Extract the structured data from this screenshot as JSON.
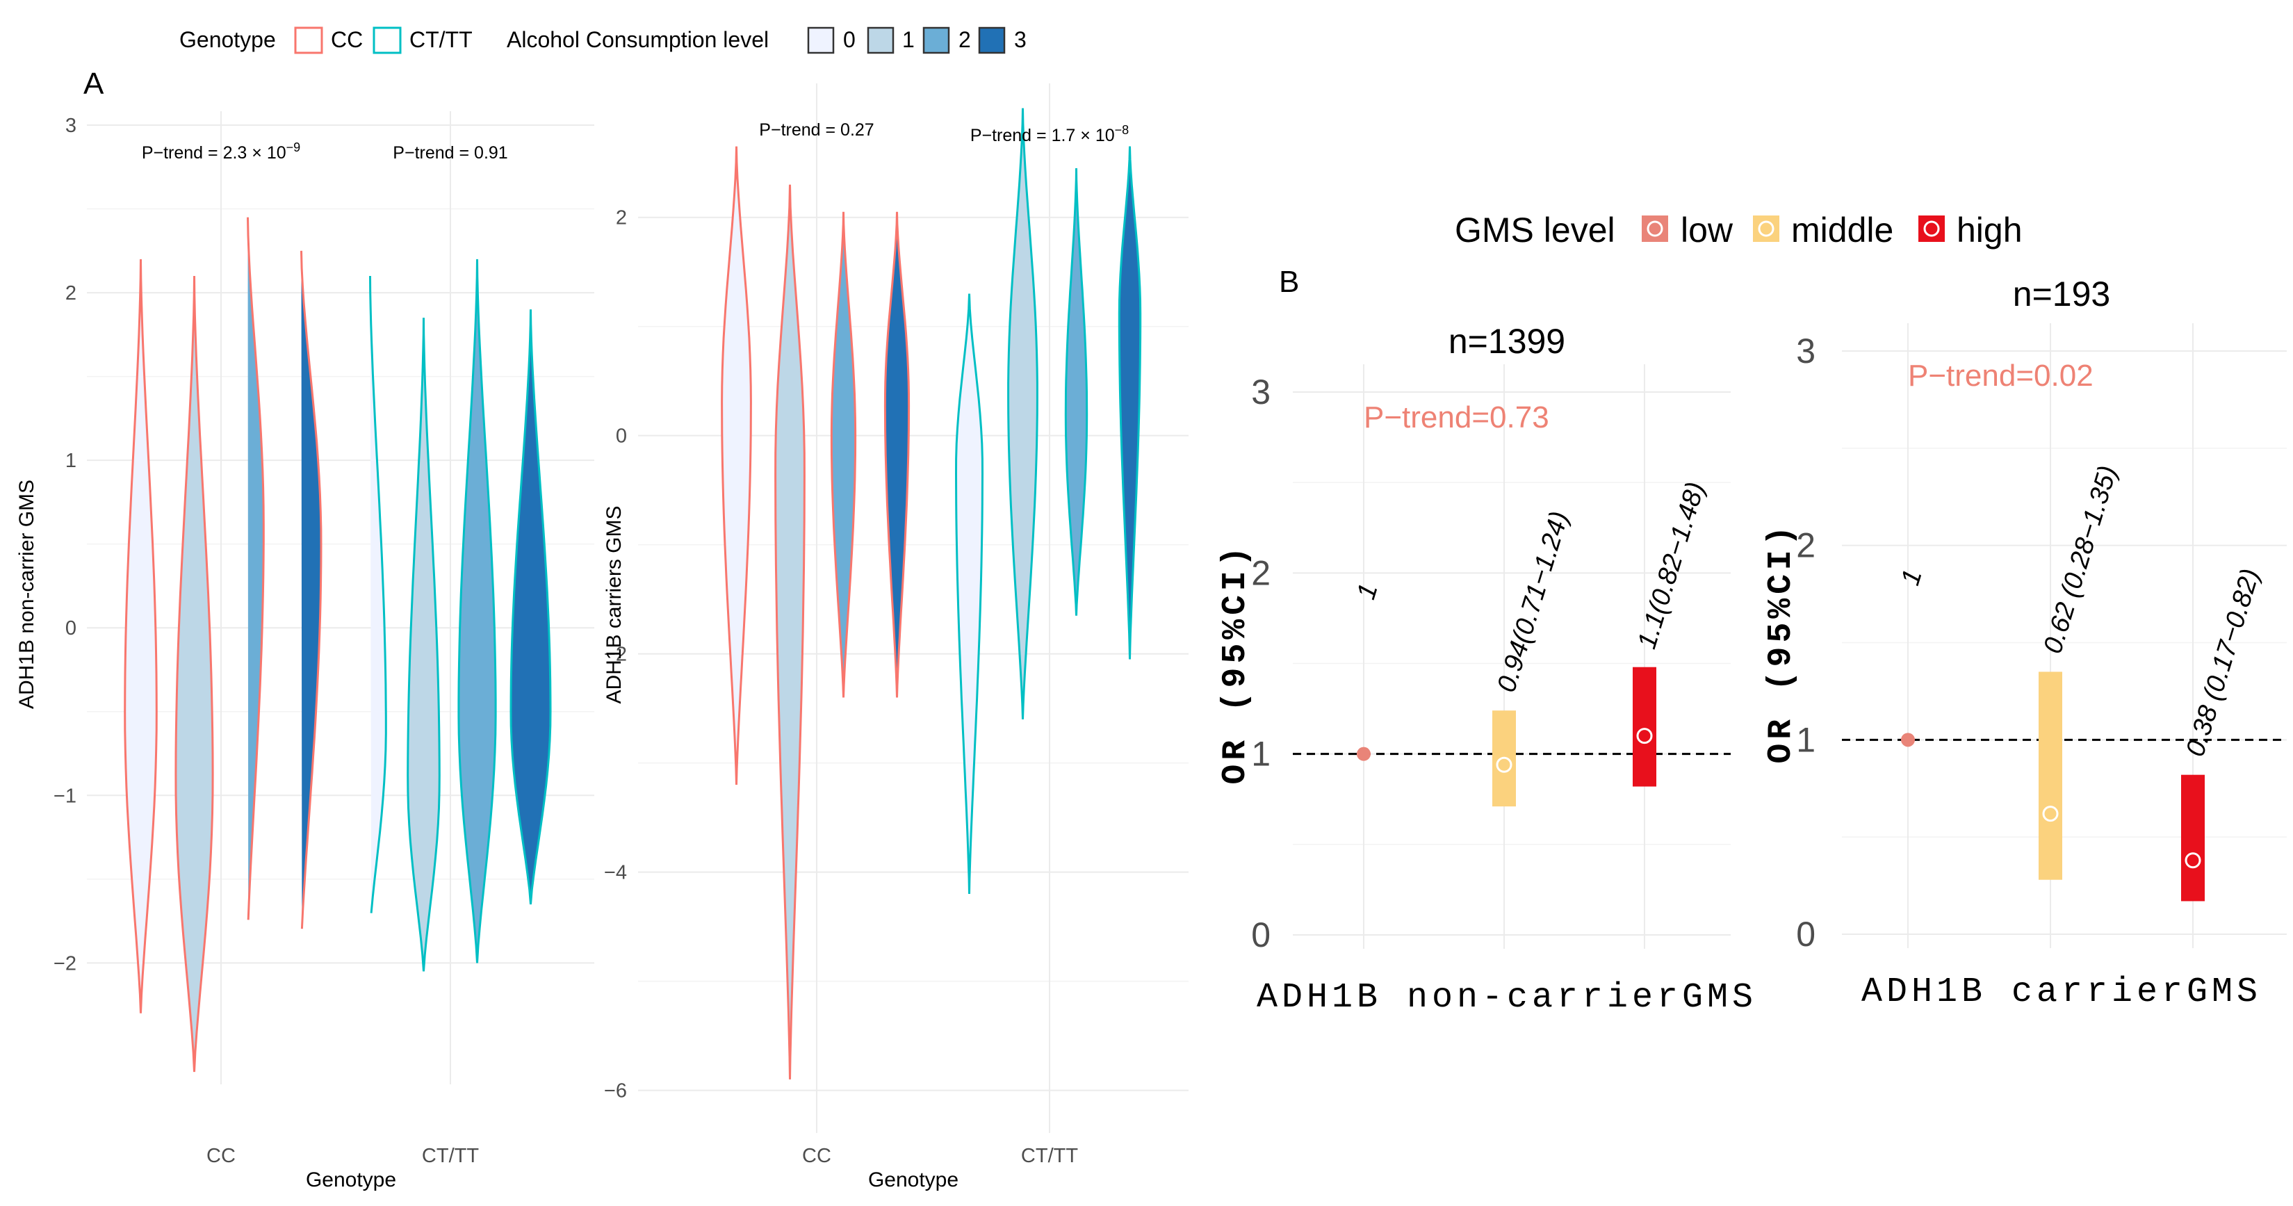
{
  "legendA": {
    "genotype_title": "Genotype",
    "genotypes": [
      {
        "label": "CC",
        "color": "#f8766d"
      },
      {
        "label": "CT/TT",
        "color": "#00bfc4"
      }
    ],
    "alcohol_title": "Alcohol Consumption level",
    "alcohol_levels": [
      {
        "label": "0",
        "color": "#eff3ff"
      },
      {
        "label": "1",
        "color": "#bdd7e7"
      },
      {
        "label": "2",
        "color": "#6baed6"
      },
      {
        "label": "3",
        "color": "#2171b5"
      }
    ]
  },
  "panelA_label": "A",
  "panelB_label": "B",
  "legendB": {
    "title": "GMS level",
    "levels": [
      {
        "label": "low",
        "color": "#e98478"
      },
      {
        "label": "middle",
        "color": "#fbd27e"
      },
      {
        "label": "high",
        "color": "#e8101c"
      }
    ]
  },
  "chart_data": [
    {
      "type": "violin",
      "ylabel": "ADH1B non-carrier GMS",
      "xlabel": "Genotype",
      "categories": [
        "CC",
        "CT/TT"
      ],
      "ylim": [
        -2.6,
        3
      ],
      "yticks": [
        -2,
        -1,
        0,
        1,
        2,
        3
      ],
      "annotations": [
        {
          "category": "CC",
          "text": "P−trend = 2.3 × 10",
          "exp": "−9",
          "y": 2.8
        },
        {
          "category": "CT/TT",
          "text": "P−trend = 0.91",
          "exp": "",
          "y": 2.8
        }
      ],
      "violins": [
        {
          "genotype": "CC",
          "level": 0,
          "min": -2.3,
          "max": 2.2,
          "mode": -0.5,
          "width": 0.6
        },
        {
          "genotype": "CC",
          "level": 1,
          "min": -2.65,
          "max": 2.1,
          "mode": -0.9,
          "width": 0.7
        },
        {
          "genotype": "CC",
          "level": 2,
          "min": -1.85,
          "max": 2.45,
          "mode": 0.6,
          "width": 0.6
        },
        {
          "genotype": "CC",
          "level": 3,
          "min": -1.9,
          "max": 2.25,
          "mode": 0.5,
          "width": 0.75
        },
        {
          "genotype": "CT/TT",
          "level": 0,
          "min": -1.8,
          "max": 2.1,
          "mode": -0.6,
          "width": 0.6
        },
        {
          "genotype": "CT/TT",
          "level": 1,
          "min": -2.05,
          "max": 1.85,
          "mode": -0.9,
          "width": 0.6
        },
        {
          "genotype": "CT/TT",
          "level": 2,
          "min": -2.0,
          "max": 2.2,
          "mode": -0.5,
          "width": 0.7
        },
        {
          "genotype": "CT/TT",
          "level": 3,
          "min": -1.65,
          "max": 1.9,
          "mode": -0.5,
          "width": 0.75
        }
      ]
    },
    {
      "type": "violin",
      "ylabel": "ADH1B carriers GMS",
      "xlabel": "Genotype",
      "categories": [
        "CC",
        "CT/TT"
      ],
      "ylim": [
        -6.2,
        3.1
      ],
      "yticks": [
        -6,
        -4,
        -2,
        0,
        2
      ],
      "annotations": [
        {
          "category": "CC",
          "text": "P−trend = 0.27",
          "exp": "",
          "y": 2.75
        },
        {
          "category": "CT/TT",
          "text": "P−trend = 1.7 × 10",
          "exp": "−8",
          "y": 2.7
        }
      ],
      "violins": [
        {
          "genotype": "CC",
          "level": 0,
          "min": -3.2,
          "max": 2.65,
          "mode": 0.3,
          "width": 0.55
        },
        {
          "genotype": "CC",
          "level": 1,
          "min": -5.9,
          "max": 2.3,
          "mode": -0.3,
          "width": 0.55
        },
        {
          "genotype": "CC",
          "level": 2,
          "min": -2.4,
          "max": 2.05,
          "mode": 0.0,
          "width": 0.45
        },
        {
          "genotype": "CC",
          "level": 3,
          "min": -2.4,
          "max": 2.05,
          "mode": 0.3,
          "width": 0.45
        },
        {
          "genotype": "CT/TT",
          "level": 0,
          "min": -4.2,
          "max": 1.3,
          "mode": -0.3,
          "width": 0.5
        },
        {
          "genotype": "CT/TT",
          "level": 1,
          "min": -2.6,
          "max": 3.0,
          "mode": 0.4,
          "width": 0.55
        },
        {
          "genotype": "CT/TT",
          "level": 2,
          "min": -1.65,
          "max": 2.45,
          "mode": 0.2,
          "width": 0.4
        },
        {
          "genotype": "CT/TT",
          "level": 3,
          "min": -2.05,
          "max": 2.65,
          "mode": 1.1,
          "width": 0.4
        }
      ]
    },
    {
      "type": "forest",
      "title": "n=1399",
      "xlabel": "ADH1B non-carrierGMS",
      "ylabel": "OR (95%CI)",
      "ylim": [
        0,
        3
      ],
      "yticks": [
        0,
        1,
        2,
        3
      ],
      "reference": 1,
      "ptrend": "P−trend=0.73",
      "points": [
        {
          "level": "low",
          "or": 1,
          "low": 1,
          "high": 1,
          "label": "1"
        },
        {
          "level": "middle",
          "or": 0.94,
          "low": 0.71,
          "high": 1.24,
          "label": "0.94(0.71−1.24)"
        },
        {
          "level": "high",
          "or": 1.1,
          "low": 0.82,
          "high": 1.48,
          "label": "1.1(0.82−1.48)"
        }
      ]
    },
    {
      "type": "forest",
      "title": "n=193",
      "xlabel": "ADH1B carrierGMS",
      "ylabel": "OR (95%CI)",
      "ylim": [
        0,
        3
      ],
      "yticks": [
        0,
        1,
        2,
        3
      ],
      "reference": 1,
      "ptrend": "P−trend=0.02",
      "points": [
        {
          "level": "low",
          "or": 1,
          "low": 1,
          "high": 1,
          "label": "1"
        },
        {
          "level": "middle",
          "or": 0.62,
          "low": 0.28,
          "high": 1.35,
          "label": "0.62 (0.28−1.35)"
        },
        {
          "level": "high",
          "or": 0.38,
          "low": 0.17,
          "high": 0.82,
          "label": "0.38 (0.17−0.82)"
        }
      ]
    }
  ]
}
